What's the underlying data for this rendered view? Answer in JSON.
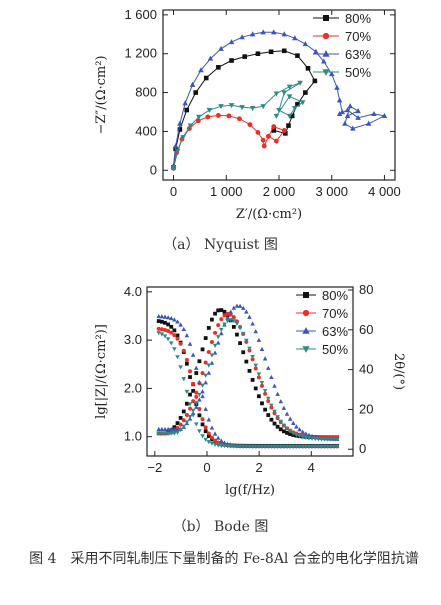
{
  "colors": {
    "s80": "#111111",
    "s70": "#e8302a",
    "s63": "#3a56b8",
    "s50": "#2e8b84"
  },
  "captions": {
    "a": "（a） Nyquist 图",
    "b": "（b） Bode 图",
    "figure": "图 4　采用不同轧制压下量制备的 Fe-8Al 合金的电化学阻抗谱"
  },
  "chart_data": [
    {
      "type": "scatter",
      "title": "",
      "xlabel": "Z′/(Ω·cm²)",
      "ylabel": "−Z″/(Ω·cm²)",
      "xlim": [
        -200,
        4200
      ],
      "ylim": [
        -100,
        1650
      ],
      "xticks": [
        0,
        1000,
        2000,
        3000,
        4000
      ],
      "xtick_labels": [
        "0",
        "1 000",
        "2 000",
        "3 000",
        "4 000"
      ],
      "yticks": [
        0,
        400,
        800,
        1200,
        1600
      ],
      "ytick_labels": [
        "0",
        "400",
        "800",
        "1 200",
        "1 600"
      ],
      "legend": "top-right",
      "series": [
        {
          "name": "80%",
          "marker": "square",
          "points": [
            [
              0,
              30
            ],
            [
              40,
              220
            ],
            [
              120,
              420
            ],
            [
              250,
              620
            ],
            [
              420,
              800
            ],
            [
              620,
              950
            ],
            [
              850,
              1060
            ],
            [
              1100,
              1130
            ],
            [
              1350,
              1170
            ],
            [
              1600,
              1200
            ],
            [
              1850,
              1220
            ],
            [
              2100,
              1230
            ],
            [
              2350,
              1180
            ],
            [
              2550,
              1050
            ],
            [
              2680,
              920
            ],
            [
              2500,
              800
            ],
            [
              2350,
              680
            ],
            [
              2250,
              560
            ],
            [
              2180,
              460
            ],
            [
              2120,
              380
            ],
            [
              1900,
              410
            ]
          ]
        },
        {
          "name": "70%",
          "marker": "circle",
          "points": [
            [
              0,
              20
            ],
            [
              60,
              180
            ],
            [
              160,
              320
            ],
            [
              300,
              430
            ],
            [
              470,
              510
            ],
            [
              650,
              550
            ],
            [
              850,
              565
            ],
            [
              1050,
              560
            ],
            [
              1250,
              530
            ],
            [
              1450,
              470
            ],
            [
              1600,
              390
            ],
            [
              1700,
              310
            ],
            [
              1720,
              250
            ],
            [
              1800,
              350
            ],
            [
              1900,
              450
            ],
            [
              2100,
              410
            ],
            [
              1950,
              300
            ],
            [
              1800,
              350
            ]
          ]
        },
        {
          "name": "63%",
          "marker": "triangle-up",
          "points": [
            [
              0,
              50
            ],
            [
              40,
              250
            ],
            [
              120,
              480
            ],
            [
              220,
              690
            ],
            [
              360,
              880
            ],
            [
              520,
              1030
            ],
            [
              700,
              1150
            ],
            [
              900,
              1250
            ],
            [
              1100,
              1320
            ],
            [
              1300,
              1370
            ],
            [
              1500,
              1400
            ],
            [
              1700,
              1420
            ],
            [
              1900,
              1420
            ],
            [
              2100,
              1400
            ],
            [
              2300,
              1360
            ],
            [
              2500,
              1300
            ],
            [
              2700,
              1220
            ],
            [
              2850,
              1120
            ],
            [
              3000,
              990
            ],
            [
              3100,
              850
            ],
            [
              3150,
              720
            ],
            [
              3200,
              600
            ],
            [
              3150,
              580
            ],
            [
              3300,
              620
            ],
            [
              3500,
              540
            ],
            [
              3800,
              580
            ],
            [
              4000,
              560
            ],
            [
              3700,
              480
            ],
            [
              3400,
              430
            ],
            [
              3250,
              480
            ],
            [
              3350,
              660
            ],
            [
              3500,
              610
            ],
            [
              3300,
              560
            ]
          ]
        },
        {
          "name": "50%",
          "marker": "triangle-down",
          "points": [
            [
              0,
              20
            ],
            [
              80,
              200
            ],
            [
              180,
              340
            ],
            [
              320,
              460
            ],
            [
              480,
              550
            ],
            [
              680,
              620
            ],
            [
              900,
              660
            ],
            [
              1100,
              670
            ],
            [
              1300,
              650
            ],
            [
              1500,
              640
            ],
            [
              1700,
              660
            ],
            [
              1950,
              790
            ],
            [
              2200,
              860
            ],
            [
              2400,
              900
            ],
            [
              2100,
              800
            ],
            [
              2000,
              620
            ],
            [
              2200,
              560
            ],
            [
              2300,
              640
            ],
            [
              2450,
              700
            ],
            [
              2200,
              760
            ],
            [
              1950,
              560
            ]
          ]
        }
      ]
    },
    {
      "type": "scatter",
      "title": "",
      "xlabel": "lg(f/Hz)",
      "ylabel": "lg[|Z|/(Ω·cm²)]",
      "ylabel_right": "2θ/(°)",
      "xlim": [
        -2.3,
        5.6
      ],
      "ylim": [
        0.6,
        4.1
      ],
      "ylim_right": [
        -3.4,
        81.5
      ],
      "xticks": [
        -2,
        0,
        2,
        4
      ],
      "xtick_labels": [
        "−2",
        "0",
        "2",
        "4"
      ],
      "yticks": [
        1.0,
        2.0,
        3.0,
        4.0
      ],
      "ytick_labels": [
        "1.0",
        "2.0",
        "3.0",
        "4.0"
      ],
      "yticks_right": [
        0,
        20,
        40,
        60,
        80
      ],
      "ytick_labels_right": [
        "0",
        "20",
        "40",
        "60",
        "80"
      ],
      "legend": "top-right",
      "series": [
        {
          "name": "80%",
          "marker": "square",
          "magnitude": {
            "f0": -2.0,
            "r1": 0.81,
            "r2": 2.61,
            "fc": -0.6
          },
          "phase": {
            "x0": -1.8,
            "a0": 8,
            "pk": 0.5,
            "amp": 70,
            "wl": 1.1,
            "wr": 1.4,
            "hf": 6
          }
        },
        {
          "name": "70%",
          "marker": "circle",
          "magnitude": {
            "f0": -2.0,
            "r1": 0.8,
            "r2": 2.45,
            "fc": -0.5
          },
          "phase": {
            "x0": -1.8,
            "a0": 8,
            "pk": 0.8,
            "amp": 68,
            "wl": 1.2,
            "wr": 1.4,
            "hf": 6
          }
        },
        {
          "name": "63%",
          "marker": "triangle-up",
          "magnitude": {
            "f0": -2.0,
            "r1": 0.8,
            "r2": 2.7,
            "fc": -0.3
          },
          "phase": {
            "x0": -1.8,
            "a0": 10,
            "pk": 1.2,
            "amp": 72,
            "wl": 1.35,
            "wr": 1.45,
            "hf": 5
          }
        },
        {
          "name": "50%",
          "marker": "triangle-down",
          "magnitude": {
            "f0": -2.0,
            "r1": 0.8,
            "r2": 2.4,
            "fc": -0.8
          },
          "phase": {
            "x0": -1.8,
            "a0": 8,
            "pk": 0.9,
            "amp": 65,
            "wl": 1.2,
            "wr": 1.4,
            "hf": 5
          }
        }
      ]
    }
  ]
}
